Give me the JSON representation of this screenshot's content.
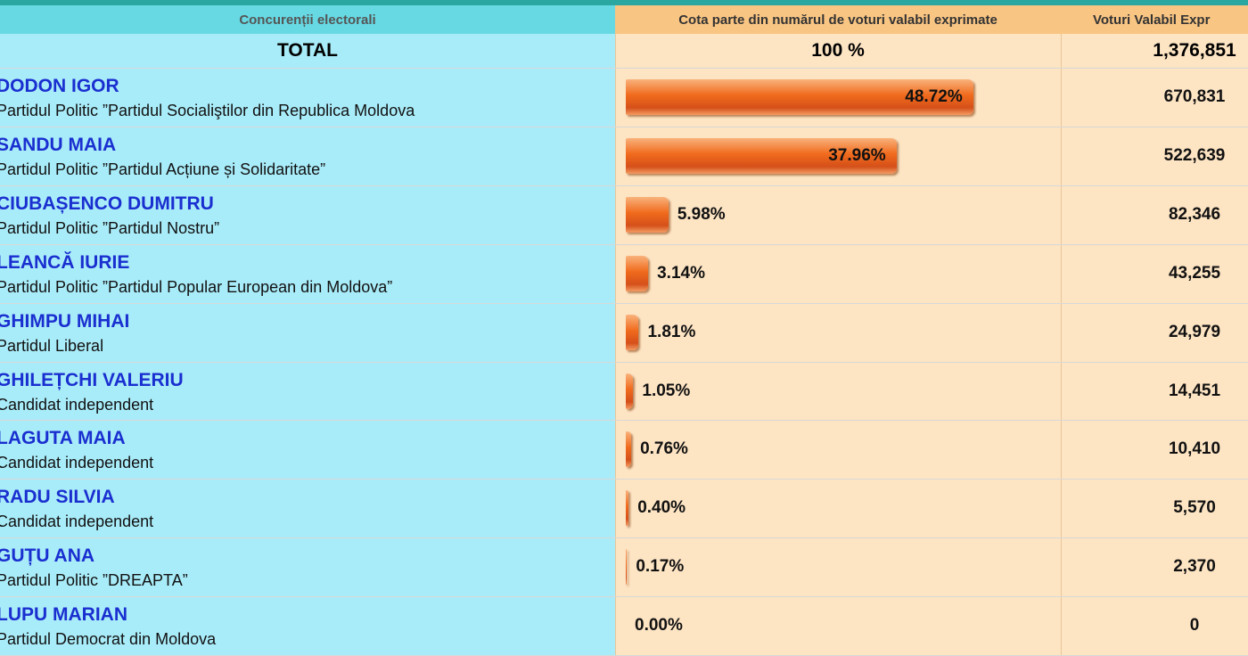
{
  "header": {
    "candidates": "Concurenții electorali",
    "share": "Cota parte din numărul de voturi valabil exprimate",
    "votes": "Voturi Valabil Expr"
  },
  "total": {
    "label": "TOTAL",
    "share": "100 %",
    "votes": "1,376,851"
  },
  "rows": [
    {
      "name": "DODON IGOR",
      "party": "Partidul Politic ”Partidul Socialiştilor din Republica Moldova",
      "share": 48.72,
      "share_label": "48.72%",
      "votes": "670,831"
    },
    {
      "name": "SANDU MAIA",
      "party": "Partidul Politic ”Partidul Acțiune și Solidaritate”",
      "share": 37.96,
      "share_label": "37.96%",
      "votes": "522,639"
    },
    {
      "name": "CIUBAȘENCO DUMITRU",
      "party": "Partidul Politic ”Partidul Nostru”",
      "share": 5.98,
      "share_label": "5.98%",
      "votes": "82,346"
    },
    {
      "name": "LEANCĂ IURIE",
      "party": "Partidul Politic ”Partidul Popular European din Moldova”",
      "share": 3.14,
      "share_label": "3.14%",
      "votes": "43,255"
    },
    {
      "name": "GHIMPU MIHAI",
      "party": "Partidul Liberal",
      "share": 1.81,
      "share_label": "1.81%",
      "votes": "24,979"
    },
    {
      "name": "GHILEȚCHI VALERIU",
      "party": "Candidat independent",
      "share": 1.05,
      "share_label": "1.05%",
      "votes": "14,451"
    },
    {
      "name": "LAGUTA MAIA",
      "party": "Candidat independent",
      "share": 0.76,
      "share_label": "0.76%",
      "votes": "10,410"
    },
    {
      "name": "RADU SILVIA",
      "party": "Candidat independent",
      "share": 0.4,
      "share_label": "0.40%",
      "votes": "5,570"
    },
    {
      "name": "GUȚU ANA",
      "party": "Partidul Politic ”DREAPTA”",
      "share": 0.17,
      "share_label": "0.17%",
      "votes": "2,370"
    },
    {
      "name": "LUPU MARIAN",
      "party": "Partidul Democrat din Moldova",
      "share": 0.0,
      "share_label": "0.00%",
      "votes": "0"
    }
  ]
}
